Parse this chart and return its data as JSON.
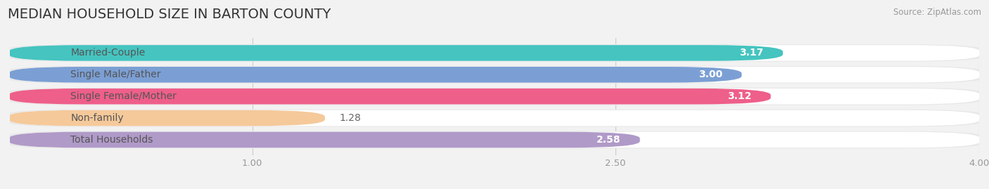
{
  "title": "MEDIAN HOUSEHOLD SIZE IN BARTON COUNTY",
  "source": "Source: ZipAtlas.com",
  "categories": [
    "Married-Couple",
    "Single Male/Father",
    "Single Female/Mother",
    "Non-family",
    "Total Households"
  ],
  "values": [
    3.17,
    3.0,
    3.12,
    1.28,
    2.58
  ],
  "bar_colors": [
    "#45c4c0",
    "#7b9fd4",
    "#ee5f8a",
    "#f5c99a",
    "#b09ac8"
  ],
  "xlim": [
    0,
    4.0
  ],
  "xstart": 0.0,
  "xticks": [
    1.0,
    2.5,
    4.0
  ],
  "xtick_labels": [
    "1.00",
    "2.50",
    "4.00"
  ],
  "background_color": "#f2f2f2",
  "bar_bg_color": "#f0f0f0",
  "bar_white_color": "#ffffff",
  "title_fontsize": 14,
  "label_fontsize": 10,
  "value_fontsize": 10
}
